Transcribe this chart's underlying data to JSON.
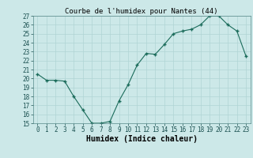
{
  "x": [
    0,
    1,
    2,
    3,
    4,
    5,
    6,
    7,
    8,
    9,
    10,
    11,
    12,
    13,
    14,
    15,
    16,
    17,
    18,
    19,
    20,
    21,
    22,
    23
  ],
  "y": [
    20.5,
    19.8,
    19.8,
    19.7,
    18.0,
    16.5,
    15.0,
    15.0,
    15.2,
    17.5,
    19.3,
    21.5,
    22.8,
    22.7,
    23.8,
    25.0,
    25.3,
    25.5,
    26.0,
    27.0,
    27.0,
    26.0,
    25.3,
    22.5
  ],
  "title": "Courbe de l'humidex pour Nantes (44)",
  "xlabel": "Humidex (Indice chaleur)",
  "ylim": [
    15,
    27
  ],
  "yticks": [
    15,
    16,
    17,
    18,
    19,
    20,
    21,
    22,
    23,
    24,
    25,
    26,
    27
  ],
  "xticks": [
    0,
    1,
    2,
    3,
    4,
    5,
    6,
    7,
    8,
    9,
    10,
    11,
    12,
    13,
    14,
    15,
    16,
    17,
    18,
    19,
    20,
    21,
    22,
    23
  ],
  "xtick_labels": [
    "0",
    "1",
    "2",
    "3",
    "4",
    "5",
    "6",
    "7",
    "8",
    "9",
    "10",
    "11",
    "12",
    "13",
    "14",
    "15",
    "16",
    "17",
    "18",
    "19",
    "20",
    "21",
    "22",
    "23"
  ],
  "line_color": "#1a6b5a",
  "marker_color": "#1a6b5a",
  "bg_color": "#cce8e8",
  "grid_color": "#b0d4d4",
  "title_fontsize": 6.5,
  "axis_fontsize": 7,
  "tick_fontsize": 5.5
}
